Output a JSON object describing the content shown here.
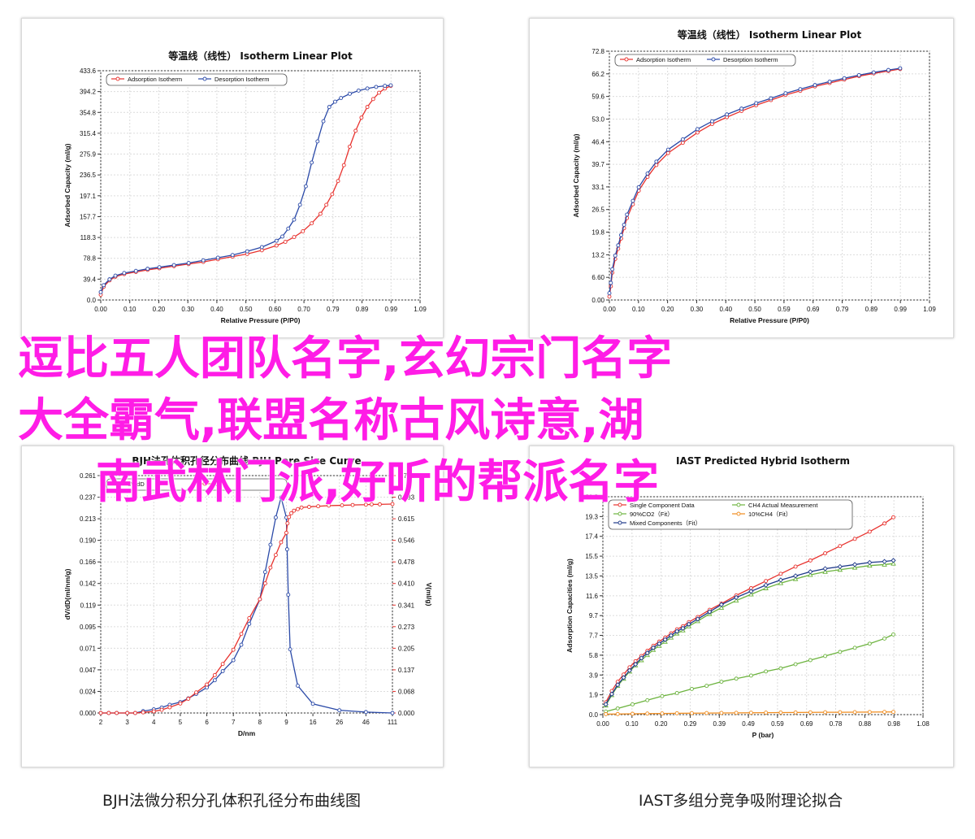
{
  "overlay": {
    "line1": "逗比五人团队名字,玄幻宗门名字",
    "line2": "大全霸气,联盟名称古风诗意,湖",
    "line3": "南武林门派,好听的帮派名字",
    "color": "#ff1ce6"
  },
  "captions": {
    "bottom_left": "BJH法微分积分孔体积孔径分布曲线图",
    "bottom_right": "IAST多组分竞争吸附理论拟合"
  },
  "colors": {
    "red": "#e8322e",
    "blue": "#2b4aa8",
    "green": "#6cb33e",
    "orange": "#f08c1e",
    "darkblue": "#1f3a8a"
  },
  "chart_data": [
    {
      "type": "line",
      "title": "等温线（线性） Isotherm Linear Plot",
      "xlabel": "Relative Pressure (P/P0)",
      "ylabel": "Adsorbed Capacity (ml/g)",
      "xlim": [
        0,
        1.09
      ],
      "ylim": [
        0,
        433.6
      ],
      "xticks": [
        "0.00",
        "0.10",
        "0.20",
        "0.30",
        "0.40",
        "0.50",
        "0.60",
        "0.70",
        "0.79",
        "0.89",
        "0.99",
        "1.09"
      ],
      "yticks": [
        "0.0",
        "39.4",
        "78.8",
        "118.3",
        "157.7",
        "197.1",
        "236.5",
        "275.9",
        "315.4",
        "354.8",
        "394.2",
        "433.6"
      ],
      "grid": true,
      "legend": "top-left",
      "series": [
        {
          "name": "Adsorption Isotherm",
          "color": "red",
          "x": [
            0.0,
            0.01,
            0.03,
            0.05,
            0.08,
            0.12,
            0.16,
            0.2,
            0.25,
            0.3,
            0.35,
            0.4,
            0.45,
            0.5,
            0.55,
            0.6,
            0.63,
            0.66,
            0.69,
            0.72,
            0.75,
            0.77,
            0.79,
            0.81,
            0.83,
            0.85,
            0.87,
            0.89,
            0.91,
            0.93,
            0.95,
            0.97,
            0.99
          ],
          "y": [
            10,
            25,
            37,
            44,
            49,
            53,
            57,
            60,
            64,
            68,
            72,
            77,
            82,
            87,
            94,
            103,
            110,
            119,
            130,
            145,
            163,
            180,
            200,
            225,
            255,
            290,
            320,
            345,
            365,
            380,
            392,
            400,
            405
          ]
        },
        {
          "name": "Desorption Isotherm",
          "color": "blue",
          "x": [
            0.0,
            0.01,
            0.03,
            0.05,
            0.08,
            0.12,
            0.16,
            0.2,
            0.25,
            0.3,
            0.35,
            0.4,
            0.45,
            0.5,
            0.55,
            0.6,
            0.62,
            0.64,
            0.66,
            0.68,
            0.7,
            0.72,
            0.74,
            0.76,
            0.78,
            0.8,
            0.82,
            0.85,
            0.88,
            0.91,
            0.94,
            0.97,
            0.99
          ],
          "y": [
            15,
            28,
            39,
            46,
            51,
            55,
            59,
            62,
            66,
            70,
            75,
            80,
            85,
            92,
            100,
            112,
            120,
            135,
            152,
            180,
            215,
            260,
            300,
            338,
            365,
            375,
            382,
            390,
            396,
            400,
            403,
            405,
            406
          ]
        }
      ]
    },
    {
      "type": "line",
      "title": "等温线（线性） Isotherm Linear Plot",
      "xlabel": "Relative Pressure (P/P0)",
      "ylabel": "Adsorbed Capacity (ml/g)",
      "xlim": [
        0,
        1.09
      ],
      "ylim": [
        0,
        72.8
      ],
      "xticks": [
        "0.00",
        "0.10",
        "0.20",
        "0.30",
        "0.40",
        "0.50",
        "0.59",
        "0.69",
        "0.79",
        "0.89",
        "0.99",
        "1.09"
      ],
      "yticks": [
        "0.00",
        "6.60",
        "13.2",
        "19.8",
        "26.5",
        "33.1",
        "39.7",
        "46.4",
        "53.0",
        "59.6",
        "66.2",
        "72.8"
      ],
      "grid": true,
      "legend": "top-left",
      "series": [
        {
          "name": "Adsorption Isotherm",
          "color": "red",
          "x": [
            0.0,
            0.005,
            0.01,
            0.02,
            0.03,
            0.04,
            0.05,
            0.06,
            0.08,
            0.1,
            0.13,
            0.16,
            0.2,
            0.25,
            0.3,
            0.35,
            0.4,
            0.45,
            0.5,
            0.55,
            0.6,
            0.65,
            0.7,
            0.75,
            0.8,
            0.85,
            0.9,
            0.95,
            0.99
          ],
          "y": [
            1,
            4,
            8,
            12,
            15,
            18,
            21,
            24,
            28,
            32,
            36,
            39.5,
            43,
            46,
            49,
            51.5,
            53.5,
            55.3,
            57,
            58.5,
            60,
            61.2,
            62.5,
            63.5,
            64.5,
            65.5,
            66.3,
            67,
            67.6
          ]
        },
        {
          "name": "Desorption Isotherm",
          "color": "blue",
          "x": [
            0.0,
            0.005,
            0.01,
            0.02,
            0.03,
            0.04,
            0.05,
            0.06,
            0.08,
            0.1,
            0.13,
            0.16,
            0.2,
            0.25,
            0.3,
            0.35,
            0.4,
            0.45,
            0.5,
            0.55,
            0.6,
            0.65,
            0.7,
            0.75,
            0.8,
            0.85,
            0.9,
            0.95,
            0.99
          ],
          "y": [
            2,
            5,
            9,
            13,
            16,
            19,
            22,
            25,
            29,
            33,
            37,
            40.5,
            44,
            47,
            50,
            52.3,
            54.3,
            56,
            57.6,
            59,
            60.5,
            61.7,
            62.9,
            63.9,
            64.9,
            65.8,
            66.6,
            67.3,
            67.8
          ]
        }
      ]
    },
    {
      "type": "line",
      "title": "BJH法孔体积孔径分布曲线 BJH Pore Size Curve",
      "xlabel": "D/nm",
      "ylabel": "dV/dD(ml/nm/g)",
      "ylabel_right": "V(ml/g)",
      "xticks": [
        "2",
        "3",
        "4",
        "5",
        "6",
        "7",
        "8",
        "9",
        "16",
        "26",
        "46",
        "111"
      ],
      "yticks": [
        "0.000",
        "0.024",
        "0.047",
        "0.071",
        "0.095",
        "0.119",
        "0.142",
        "0.166",
        "0.190",
        "0.213",
        "0.237",
        "0.261"
      ],
      "yticks_right": [
        "0.000",
        "0.068",
        "0.137",
        "0.205",
        "0.273",
        "0.341",
        "0.410",
        "0.478",
        "0.546",
        "0.615",
        "0.683",
        "0.751"
      ],
      "grid": true,
      "legend": "top-left",
      "series": [
        {
          "name": "dV/dD",
          "color": "blue",
          "x": [
            2.0,
            2.3,
            2.6,
            3.0,
            3.3,
            3.6,
            4.0,
            4.3,
            4.6,
            5.0,
            5.3,
            5.6,
            6.0,
            6.3,
            6.6,
            7.0,
            7.3,
            7.6,
            8.0,
            8.2,
            8.4,
            8.6,
            8.8,
            9.0,
            9.2,
            9.5,
            10,
            12,
            16,
            26,
            46,
            111
          ],
          "y": [
            0,
            0,
            0,
            0,
            0,
            0.002,
            0.004,
            0.006,
            0.009,
            0.012,
            0.016,
            0.021,
            0.028,
            0.036,
            0.046,
            0.058,
            0.075,
            0.098,
            0.125,
            0.155,
            0.185,
            0.215,
            0.237,
            0.215,
            0.18,
            0.13,
            0.07,
            0.03,
            0.01,
            0.003,
            0.001,
            0
          ]
        },
        {
          "name": "V",
          "color": "red",
          "x": [
            2.0,
            2.3,
            2.6,
            3.0,
            3.3,
            3.6,
            4.0,
            4.3,
            4.6,
            5.0,
            5.3,
            5.6,
            6.0,
            6.3,
            6.6,
            7.0,
            7.3,
            7.6,
            8.0,
            8.2,
            8.4,
            8.6,
            8.8,
            9.0,
            9.3,
            9.7,
            10.3,
            11,
            12,
            13,
            15,
            18,
            22,
            28,
            36,
            46,
            60,
            80,
            111
          ],
          "y": [
            0,
            0,
            0,
            0,
            0,
            0.002,
            0.005,
            0.01,
            0.018,
            0.03,
            0.045,
            0.065,
            0.09,
            0.12,
            0.155,
            0.2,
            0.25,
            0.3,
            0.36,
            0.41,
            0.46,
            0.5,
            0.54,
            0.57,
            0.6,
            0.62,
            0.632,
            0.64,
            0.645,
            0.65,
            0.652,
            0.654,
            0.656,
            0.657,
            0.658,
            0.659,
            0.66,
            0.66,
            0.661
          ]
        }
      ]
    },
    {
      "type": "line",
      "title": "IAST Predicted Hybrid Isotherm",
      "xlabel": "P (bar)",
      "ylabel": "Adsorption Capacities (ml/g)",
      "xlim": [
        0,
        1.08
      ],
      "ylim": [
        0,
        21.2
      ],
      "xticks": [
        "0.00",
        "0.10",
        "0.20",
        "0.29",
        "0.39",
        "0.49",
        "0.59",
        "0.69",
        "0.78",
        "0.88",
        "0.98",
        "1.08"
      ],
      "yticks": [
        "0.0",
        "1.9",
        "3.9",
        "5.8",
        "7.7",
        "9.7",
        "11.6",
        "13.5",
        "15.5",
        "17.4",
        "19.3",
        "21.2"
      ],
      "grid": true,
      "legend": "top-left",
      "series": [
        {
          "name": "Single Component Data",
          "color": "red",
          "x": [
            0.01,
            0.03,
            0.05,
            0.07,
            0.09,
            0.11,
            0.13,
            0.15,
            0.17,
            0.19,
            0.21,
            0.23,
            0.25,
            0.27,
            0.29,
            0.32,
            0.36,
            0.4,
            0.45,
            0.5,
            0.55,
            0.6,
            0.65,
            0.7,
            0.75,
            0.8,
            0.85,
            0.9,
            0.95,
            0.98
          ],
          "y": [
            1.2,
            2.3,
            3.2,
            3.9,
            4.6,
            5.2,
            5.7,
            6.2,
            6.7,
            7.1,
            7.5,
            7.9,
            8.3,
            8.6,
            9.0,
            9.5,
            10.2,
            10.8,
            11.6,
            12.3,
            13.0,
            13.7,
            14.4,
            15.0,
            15.7,
            16.4,
            17.1,
            17.8,
            18.6,
            19.2
          ]
        },
        {
          "name": "CH4 Actual Measurement",
          "color": "green",
          "x": [
            0.01,
            0.03,
            0.05,
            0.07,
            0.09,
            0.11,
            0.13,
            0.15,
            0.17,
            0.19,
            0.21,
            0.23,
            0.25,
            0.27,
            0.29,
            0.32,
            0.36,
            0.4,
            0.45,
            0.5,
            0.55,
            0.6,
            0.65,
            0.7,
            0.75,
            0.8,
            0.85,
            0.9,
            0.95,
            0.98
          ],
          "y": [
            0.9,
            1.9,
            2.8,
            3.5,
            4.2,
            4.8,
            5.3,
            5.8,
            6.3,
            6.7,
            7.1,
            7.5,
            7.9,
            8.2,
            8.6,
            9.1,
            9.8,
            10.4,
            11.1,
            11.7,
            12.3,
            12.8,
            13.2,
            13.6,
            13.9,
            14.1,
            14.3,
            14.5,
            14.6,
            14.7
          ]
        },
        {
          "name": "90%CO2（Fit）",
          "color": "green",
          "x": [
            0.01,
            0.05,
            0.1,
            0.15,
            0.2,
            0.25,
            0.3,
            0.35,
            0.4,
            0.45,
            0.5,
            0.55,
            0.6,
            0.65,
            0.7,
            0.75,
            0.8,
            0.85,
            0.9,
            0.95,
            0.98
          ],
          "y": [
            0.3,
            0.6,
            1.0,
            1.4,
            1.8,
            2.1,
            2.5,
            2.8,
            3.2,
            3.5,
            3.8,
            4.2,
            4.5,
            4.9,
            5.3,
            5.7,
            6.1,
            6.5,
            6.9,
            7.4,
            7.8
          ]
        },
        {
          "name": "10%CH4（Fit）",
          "color": "orange",
          "x": [
            0.01,
            0.05,
            0.1,
            0.15,
            0.2,
            0.25,
            0.3,
            0.35,
            0.4,
            0.45,
            0.5,
            0.55,
            0.6,
            0.65,
            0.7,
            0.75,
            0.8,
            0.85,
            0.9,
            0.95,
            0.98
          ],
          "y": [
            0.05,
            0.06,
            0.08,
            0.1,
            0.11,
            0.13,
            0.14,
            0.15,
            0.16,
            0.17,
            0.18,
            0.19,
            0.2,
            0.21,
            0.22,
            0.23,
            0.23,
            0.24,
            0.25,
            0.26,
            0.26
          ]
        },
        {
          "name": "Mixed Components（Fit）",
          "color": "darkblue",
          "x": [
            0.01,
            0.03,
            0.05,
            0.07,
            0.09,
            0.11,
            0.13,
            0.15,
            0.17,
            0.19,
            0.21,
            0.23,
            0.25,
            0.27,
            0.29,
            0.32,
            0.36,
            0.4,
            0.45,
            0.5,
            0.55,
            0.6,
            0.65,
            0.7,
            0.75,
            0.8,
            0.85,
            0.9,
            0.95,
            0.98
          ],
          "y": [
            1.0,
            2.0,
            2.9,
            3.6,
            4.3,
            4.9,
            5.5,
            6.0,
            6.5,
            6.9,
            7.3,
            7.7,
            8.1,
            8.4,
            8.8,
            9.3,
            10.0,
            10.7,
            11.4,
            12.0,
            12.6,
            13.1,
            13.5,
            13.9,
            14.2,
            14.4,
            14.6,
            14.8,
            14.9,
            15.0
          ]
        }
      ]
    }
  ]
}
